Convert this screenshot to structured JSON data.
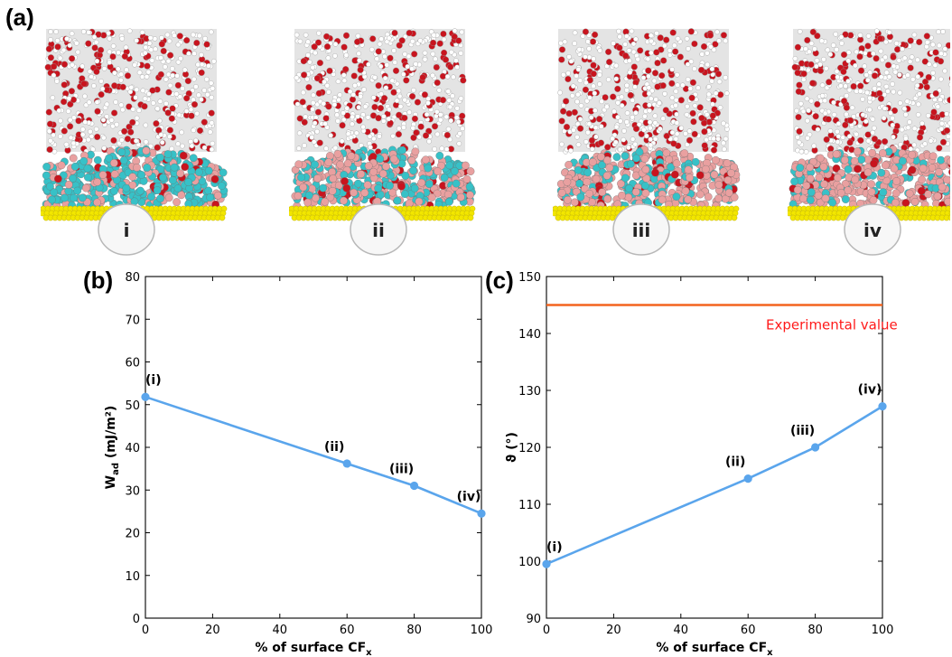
{
  "panels": {
    "a": "(a)",
    "b": "(b)",
    "c": "(c)"
  },
  "snapshots": [
    {
      "label": "i",
      "cf_percent": 0
    },
    {
      "label": "ii",
      "cf_percent": 60
    },
    {
      "label": "iii",
      "cf_percent": 80
    },
    {
      "label": "iv",
      "cf_percent": 100
    }
  ],
  "colors": {
    "series": "#5aa5ec",
    "reference_line": "#f4641e",
    "reference_text": "#ff1a1a",
    "water_white": "#e4e4e4",
    "water_red": "#c8141e",
    "film_cyan": "#37c1c7",
    "film_pink": "#e9a0a0",
    "gold": "#f2e600"
  },
  "chart_data": [
    {
      "id": "b",
      "type": "line",
      "xlabel": "% of surface CF",
      "xlabel_sub": "x",
      "ylabel": "W",
      "ylabel_sub": "ad",
      "ylabel_unit": " (mJ/m²)",
      "xlim": [
        0,
        100
      ],
      "ylim": [
        0,
        80
      ],
      "xticks": [
        0,
        20,
        40,
        60,
        80,
        100
      ],
      "yticks": [
        0,
        10,
        20,
        30,
        40,
        50,
        60,
        70,
        80
      ],
      "series": [
        {
          "x": [
            0,
            60,
            80,
            100
          ],
          "y": [
            51.8,
            36.2,
            31.0,
            24.5
          ],
          "point_labels": [
            "(i)",
            "(ii)",
            "(iii)",
            "(iv)"
          ]
        }
      ]
    },
    {
      "id": "c",
      "type": "line",
      "xlabel": "% of surface CF",
      "xlabel_sub": "x",
      "ylabel": "ϑ (°)",
      "xlim": [
        0,
        100
      ],
      "ylim": [
        90,
        150
      ],
      "xticks": [
        0,
        20,
        40,
        60,
        80,
        100
      ],
      "yticks": [
        90,
        100,
        110,
        120,
        130,
        140,
        150
      ],
      "series": [
        {
          "x": [
            0,
            60,
            80,
            100
          ],
          "y": [
            99.5,
            114.5,
            120.0,
            127.2
          ],
          "point_labels": [
            "(i)",
            "(ii)",
            "(iii)",
            "(iv)"
          ]
        }
      ],
      "reference_line": {
        "y": 145,
        "label": "Experimental value"
      }
    }
  ]
}
